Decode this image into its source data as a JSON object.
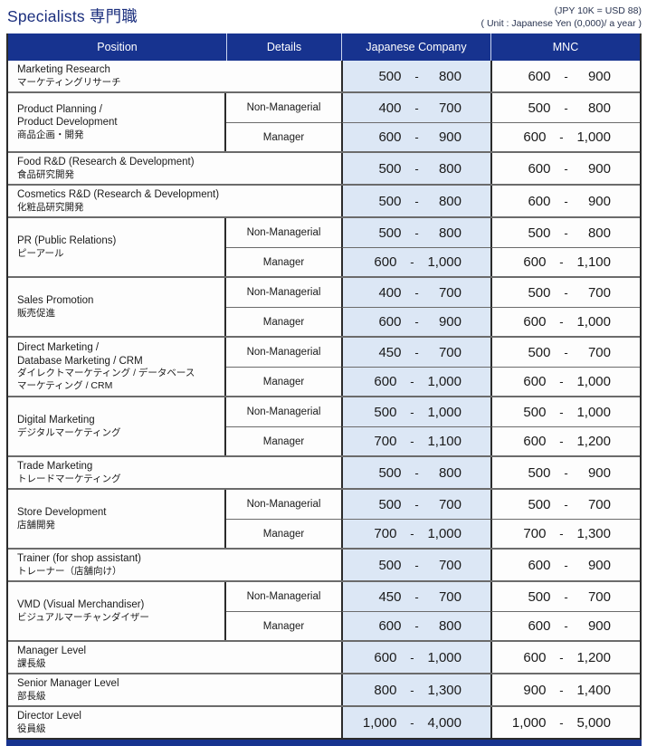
{
  "title": "Specialists 専門職",
  "notes": {
    "line1": "(JPY 10K = USD 88)",
    "line2": "( Unit : Japanese Yen (0,000)/ a year )"
  },
  "columns": {
    "position": "Position",
    "details": "Details",
    "japanese_company": "Japanese Company",
    "mnc": "MNC"
  },
  "range_separator": "-",
  "colors": {
    "header_bg": "#17338f",
    "japanese_company_cell_bg": "#dce7f5",
    "title_text": "#1b2f7e"
  },
  "rows": [
    {
      "position": [
        "Marketing Research"
      ],
      "position_ja": [
        "マーケティングリサーチ"
      ],
      "subrows": [
        {
          "details": "",
          "jc": [
            "500",
            "800"
          ],
          "mnc": [
            "600",
            "900"
          ]
        }
      ]
    },
    {
      "position": [
        "Product Planning /",
        "Product Development"
      ],
      "position_ja": [
        "商品企画・開発"
      ],
      "subrows": [
        {
          "details": "Non-Managerial",
          "jc": [
            "400",
            "700"
          ],
          "mnc": [
            "500",
            "800"
          ]
        },
        {
          "details": "Manager",
          "jc": [
            "600",
            "900"
          ],
          "mnc": [
            "600",
            "1,000"
          ]
        }
      ]
    },
    {
      "position": [
        "Food R&D (Research & Development)"
      ],
      "position_ja": [
        "食品研究開発"
      ],
      "subrows": [
        {
          "details": "",
          "jc": [
            "500",
            "800"
          ],
          "mnc": [
            "600",
            "900"
          ]
        }
      ]
    },
    {
      "position": [
        "Cosmetics R&D (Research & Development)"
      ],
      "position_ja": [
        "化粧品研究開発"
      ],
      "subrows": [
        {
          "details": "",
          "jc": [
            "500",
            "800"
          ],
          "mnc": [
            "600",
            "900"
          ]
        }
      ]
    },
    {
      "position": [
        "PR (Public Relations)"
      ],
      "position_ja": [
        "ピーアール"
      ],
      "subrows": [
        {
          "details": "Non-Managerial",
          "jc": [
            "500",
            "800"
          ],
          "mnc": [
            "500",
            "800"
          ]
        },
        {
          "details": "Manager",
          "jc": [
            "600",
            "1,000"
          ],
          "mnc": [
            "600",
            "1,100"
          ]
        }
      ]
    },
    {
      "position": [
        "Sales Promotion"
      ],
      "position_ja": [
        "販売促進"
      ],
      "subrows": [
        {
          "details": "Non-Managerial",
          "jc": [
            "400",
            "700"
          ],
          "mnc": [
            "500",
            "700"
          ]
        },
        {
          "details": "Manager",
          "jc": [
            "600",
            "900"
          ],
          "mnc": [
            "600",
            "1,000"
          ]
        }
      ]
    },
    {
      "position": [
        "Direct Marketing /",
        "Database Marketing / CRM"
      ],
      "position_ja": [
        "ダイレクトマーケティング / データベース",
        "マーケティング / CRM"
      ],
      "subrows": [
        {
          "details": "Non-Managerial",
          "jc": [
            "450",
            "700"
          ],
          "mnc": [
            "500",
            "700"
          ]
        },
        {
          "details": "Manager",
          "jc": [
            "600",
            "1,000"
          ],
          "mnc": [
            "600",
            "1,000"
          ]
        }
      ]
    },
    {
      "position": [
        "Digital Marketing"
      ],
      "position_ja": [
        "デジタルマーケティング"
      ],
      "subrows": [
        {
          "details": "Non-Managerial",
          "jc": [
            "500",
            "1,000"
          ],
          "mnc": [
            "500",
            "1,000"
          ]
        },
        {
          "details": "Manager",
          "jc": [
            "700",
            "1,100"
          ],
          "mnc": [
            "600",
            "1,200"
          ]
        }
      ]
    },
    {
      "position": [
        "Trade Marketing"
      ],
      "position_ja": [
        "トレードマーケティング"
      ],
      "subrows": [
        {
          "details": "",
          "jc": [
            "500",
            "800"
          ],
          "mnc": [
            "500",
            "900"
          ]
        }
      ]
    },
    {
      "position": [
        "Store Development"
      ],
      "position_ja": [
        "店舗開発"
      ],
      "subrows": [
        {
          "details": "Non-Managerial",
          "jc": [
            "500",
            "700"
          ],
          "mnc": [
            "500",
            "700"
          ]
        },
        {
          "details": "Manager",
          "jc": [
            "700",
            "1,000"
          ],
          "mnc": [
            "700",
            "1,300"
          ]
        }
      ]
    },
    {
      "position": [
        "Trainer (for shop assistant)"
      ],
      "position_ja": [
        "トレーナー（店舗向け）"
      ],
      "subrows": [
        {
          "details": "",
          "jc": [
            "500",
            "700"
          ],
          "mnc": [
            "600",
            "900"
          ]
        }
      ]
    },
    {
      "position": [
        "VMD (Visual Merchandiser)"
      ],
      "position_ja": [
        "ビジュアルマーチャンダイザー"
      ],
      "subrows": [
        {
          "details": "Non-Managerial",
          "jc": [
            "450",
            "700"
          ],
          "mnc": [
            "500",
            "700"
          ]
        },
        {
          "details": "Manager",
          "jc": [
            "600",
            "800"
          ],
          "mnc": [
            "600",
            "900"
          ]
        }
      ]
    },
    {
      "position": [
        "Manager Level"
      ],
      "position_ja": [
        "課長級"
      ],
      "subrows": [
        {
          "details": "",
          "jc": [
            "600",
            "1,000"
          ],
          "mnc": [
            "600",
            "1,200"
          ]
        }
      ]
    },
    {
      "position": [
        "Senior Manager Level"
      ],
      "position_ja": [
        "部長級"
      ],
      "subrows": [
        {
          "details": "",
          "jc": [
            "800",
            "1,300"
          ],
          "mnc": [
            "900",
            "1,400"
          ]
        }
      ]
    },
    {
      "position": [
        "Director Level"
      ],
      "position_ja": [
        "役員級"
      ],
      "subrows": [
        {
          "details": "",
          "jc": [
            "1,000",
            "4,000"
          ],
          "mnc": [
            "1,000",
            "5,000"
          ]
        }
      ]
    }
  ]
}
